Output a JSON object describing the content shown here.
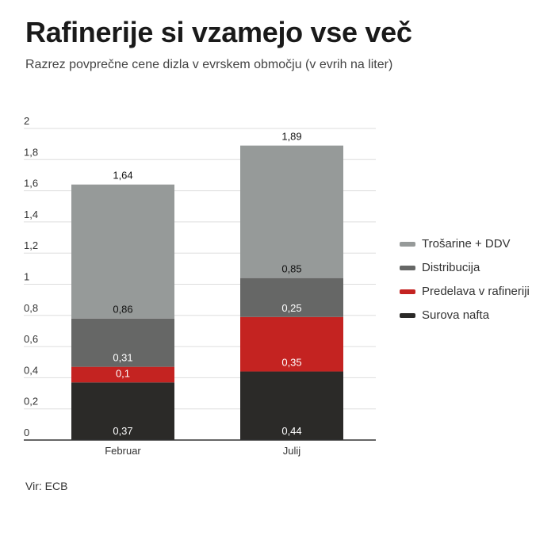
{
  "title": "Rafinerije si vzamejo vse več",
  "subtitle": "Razrez povprečne cene dizla v evrskem območju (v evrih na liter)",
  "source": "Vir: ECB",
  "colors": {
    "surova_nafta": "#2b2a28",
    "predelava": "#c42321",
    "distribucija": "#666766",
    "trosarine": "#969a99",
    "gridline": "#dddddd",
    "axis": "#333333"
  },
  "chart_data": {
    "type": "bar",
    "stacked": true,
    "categories": [
      "Februar",
      "Julij"
    ],
    "series": [
      {
        "name": "Surova nafta",
        "values": [
          0.37,
          0.44
        ],
        "labels": [
          "0,37",
          "0,44"
        ],
        "color": "#2b2a28",
        "label_color": "#ffffff"
      },
      {
        "name": "Predelava v rafineriji",
        "values": [
          0.1,
          0.35
        ],
        "labels": [
          "0,1",
          "0,35"
        ],
        "color": "#c42321",
        "label_color": "#ffffff"
      },
      {
        "name": "Distribucija",
        "values": [
          0.31,
          0.25
        ],
        "labels": [
          "0,31",
          "0,25"
        ],
        "color": "#666766",
        "label_color": "#ffffff"
      },
      {
        "name": "Trošarine + DDV",
        "values": [
          0.86,
          0.85
        ],
        "labels": [
          "0,86",
          "0,85"
        ],
        "color": "#969a99",
        "label_color": "#111111"
      }
    ],
    "totals": [
      1.64,
      1.89
    ],
    "total_labels": [
      "1,64",
      "1,89"
    ],
    "y_ticks": [
      0,
      0.2,
      0.4,
      0.6,
      0.8,
      1,
      1.2,
      1.4,
      1.6,
      1.8,
      2
    ],
    "y_tick_labels": [
      "0",
      "0,2",
      "0,4",
      "0,6",
      "0,8",
      "1",
      "1,2",
      "1,4",
      "1,6",
      "1,8",
      "2"
    ],
    "ylim": [
      0,
      2
    ],
    "grid": true,
    "legend_position": "right",
    "xlabel": "",
    "ylabel": ""
  },
  "legend": [
    {
      "label": "Trošarine + DDV",
      "color": "#969a99"
    },
    {
      "label": "Distribucija",
      "color": "#666766"
    },
    {
      "label": "Predelava v rafineriji",
      "color": "#c42321"
    },
    {
      "label": "Surova nafta",
      "color": "#2b2a28"
    }
  ]
}
